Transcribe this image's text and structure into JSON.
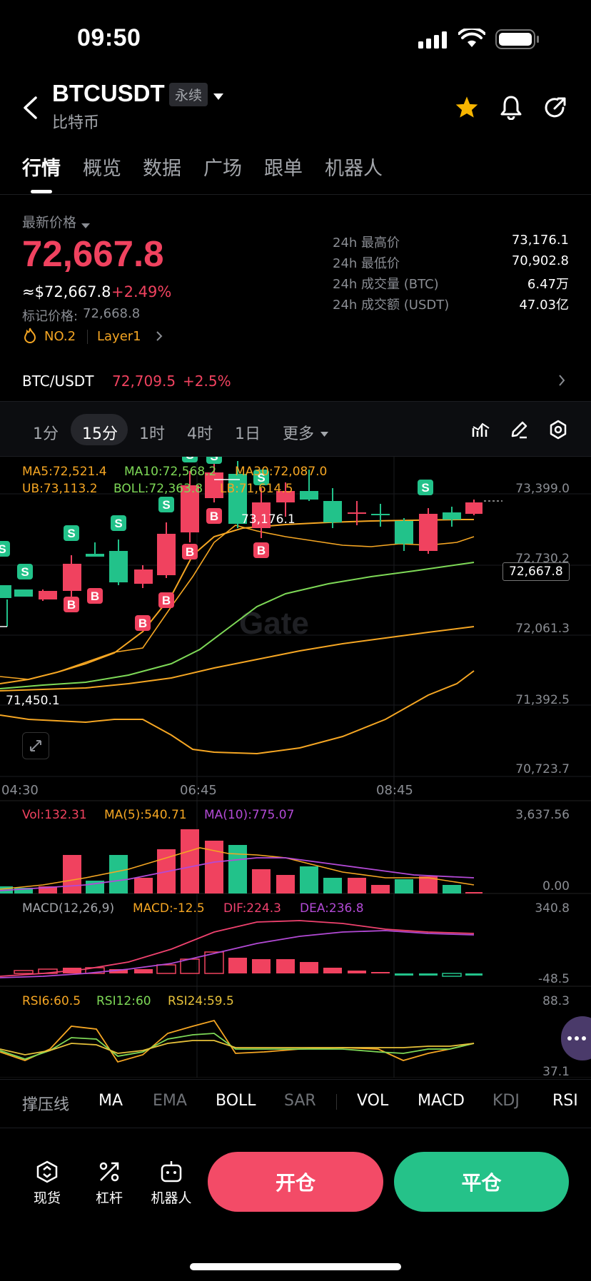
{
  "status": {
    "time": "09:50"
  },
  "header": {
    "symbol": "BTCUSDT",
    "contract_type": "永续",
    "subtitle": "比特币"
  },
  "tabs": [
    "行情",
    "概览",
    "数据",
    "广场",
    "跟单",
    "机器人"
  ],
  "price": {
    "label": "最新价格",
    "last": "72,667.8",
    "usd": "≈$72,667.8",
    "change": "+2.49%",
    "mark_label": "标记价格:",
    "mark": "72,668.8",
    "rank": "NO.2",
    "category": "Layer1"
  },
  "stats": [
    {
      "label": "24h 最高价",
      "value": "73,176.1"
    },
    {
      "label": "24h 最低价",
      "value": "70,902.8"
    },
    {
      "label": "24h 成交量 (BTC)",
      "value": "6.47万"
    },
    {
      "label": "24h 成交额 (USDT)",
      "value": "47.03亿"
    }
  ],
  "spot": {
    "pair": "BTC/USDT",
    "price": "72,709.5",
    "change": "+2.5%"
  },
  "timeframes": [
    "1分",
    "15分",
    "1时",
    "4时",
    "1日",
    "更多"
  ],
  "active_timeframe": "15分",
  "main_indicators": {
    "ma5": "MA5:72,521.4",
    "ma10": "MA10:72,568.2",
    "ma30": "MA30:72,087.0",
    "ub": "UB:73,113.2",
    "boll": "BOLL:72,363.8",
    "lb": "LB:71,614.5"
  },
  "price_axis": [
    "73,399.0",
    "72,730.2",
    "72,061.3",
    "71,392.5",
    "70,723.7"
  ],
  "current_price_tag": "72,667.8",
  "high_marker": "73,176.1",
  "low_marker": "71,450.1",
  "time_axis": [
    "04:30",
    "06:45",
    "08:45"
  ],
  "watermark": "Gate",
  "volume": {
    "vol": "Vol:132.31",
    "ma5": "MA(5):540.71",
    "ma10": "MA(10):775.07",
    "max": "3,637.56",
    "min": "0.00"
  },
  "macd": {
    "name": "MACD(12,26,9)",
    "macd": "MACD:-12.5",
    "dif": "DIF:224.3",
    "dea": "DEA:236.8",
    "max": "340.8",
    "min": "-48.5"
  },
  "rsi": {
    "rsi6": "RSI6:60.5",
    "rsi12": "RSI12:60",
    "rsi24": "RSI24:59.5",
    "max": "88.3",
    "min": "37.1"
  },
  "indicator_tabs": [
    "撑压线",
    "MA",
    "EMA",
    "BOLL",
    "SAR",
    "VOL",
    "MACD",
    "KDJ",
    "RSI"
  ],
  "bottom_nav": [
    "现货",
    "杠杆",
    "机器人"
  ],
  "actions": {
    "open": "开仓",
    "close": "平仓"
  },
  "colors": {
    "up": "#22c28a",
    "down": "#f0425f",
    "ma5": "#f5a623",
    "ma10": "#7ed957",
    "ma30": "#f5a623",
    "boll": "#7ed957"
  }
}
